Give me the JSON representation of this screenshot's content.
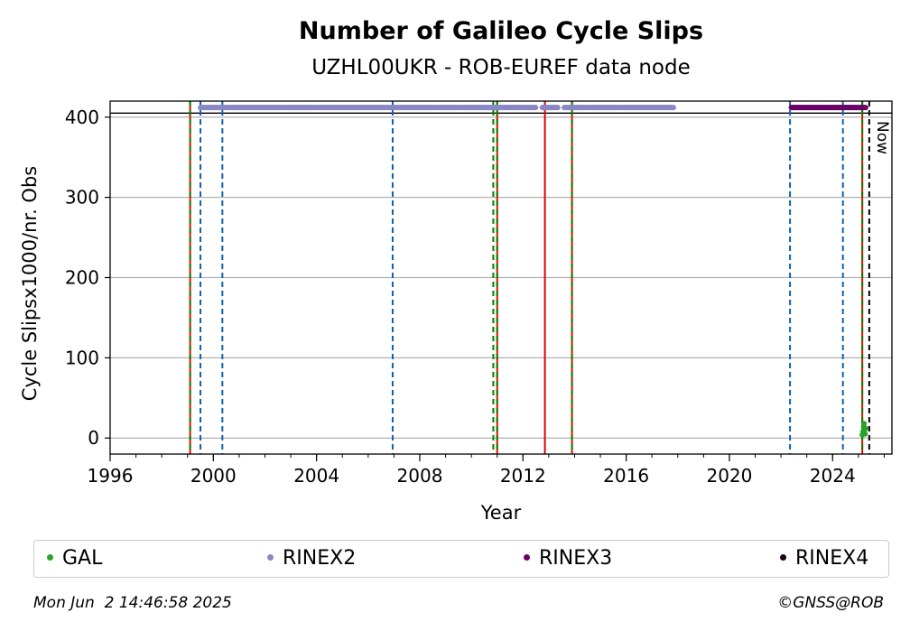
{
  "chart_data": {
    "type": "scatter",
    "title": "Number of Galileo Cycle Slips",
    "subtitle": "UZHL00UKR - ROB-EUREF data node",
    "xlabel": "Year",
    "ylabel": "Cycle Slipsx1000/nr. Obs",
    "xlim": [
      1996.0,
      2026.3
    ],
    "ylim": [
      -20,
      420
    ],
    "x_ticks": [
      1996,
      2000,
      2004,
      2008,
      2012,
      2016,
      2020,
      2024
    ],
    "y_ticks": [
      0,
      100,
      200,
      300,
      400
    ],
    "grid": "horizontal",
    "reference_line_y": 405,
    "series": [
      {
        "name": "GAL",
        "color": "#2ca02c",
        "points": [
          [
            2025.15,
            4
          ],
          [
            2025.18,
            8
          ],
          [
            2025.2,
            14
          ],
          [
            2025.22,
            18
          ],
          [
            2025.24,
            10
          ],
          [
            2025.26,
            5
          ],
          [
            2025.28,
            12
          ]
        ]
      },
      {
        "name": "RINEX2",
        "color": "#8a88c4",
        "y": 412,
        "ranges": [
          [
            1999.5,
            2012.5
          ],
          [
            2012.75,
            2013.35
          ],
          [
            2013.6,
            2017.85
          ]
        ]
      },
      {
        "name": "RINEX3",
        "color": "#6a0066",
        "y": 412,
        "ranges": [
          [
            2022.4,
            2025.3
          ]
        ]
      },
      {
        "name": "RINEX4",
        "color": "#1a0019",
        "y": 412,
        "ranges": []
      }
    ],
    "vertical_lines": [
      {
        "x": 1999.1,
        "color": "#ff0000",
        "style": "solid"
      },
      {
        "x": 1999.1,
        "color": "#008000",
        "style": "dashed"
      },
      {
        "x": 1999.5,
        "color": "#1060b0",
        "style": "dashed"
      },
      {
        "x": 2000.35,
        "color": "#1060b0",
        "style": "dashed"
      },
      {
        "x": 2006.95,
        "color": "#1060b0",
        "style": "dashed"
      },
      {
        "x": 2010.85,
        "color": "#008000",
        "style": "dashed"
      },
      {
        "x": 2011.0,
        "color": "#ff0000",
        "style": "solid"
      },
      {
        "x": 2011.0,
        "color": "#008000",
        "style": "dashed"
      },
      {
        "x": 2012.85,
        "color": "#dd0000",
        "style": "solid"
      },
      {
        "x": 2013.9,
        "color": "#ff0000",
        "style": "solid"
      },
      {
        "x": 2013.9,
        "color": "#008000",
        "style": "dashed"
      },
      {
        "x": 2022.35,
        "color": "#1060b0",
        "style": "dashed"
      },
      {
        "x": 2024.4,
        "color": "#1060b0",
        "style": "dashed"
      },
      {
        "x": 2025.15,
        "color": "#ff0000",
        "style": "solid"
      },
      {
        "x": 2025.15,
        "color": "#008000",
        "style": "dashed"
      },
      {
        "x": 2025.42,
        "color": "#000000",
        "style": "dashed"
      }
    ],
    "now_marker": {
      "x": 2025.42,
      "label": "Now"
    }
  },
  "legend": [
    {
      "label": "GAL",
      "color": "#2ca02c"
    },
    {
      "label": "RINEX2",
      "color": "#8a88c4"
    },
    {
      "label": "RINEX3",
      "color": "#6a0066"
    },
    {
      "label": "RINEX4",
      "color": "#1a0019"
    }
  ],
  "footer": {
    "timestamp": "Mon Jun  2 14:46:58 2025",
    "credit": "©GNSS@ROB"
  }
}
